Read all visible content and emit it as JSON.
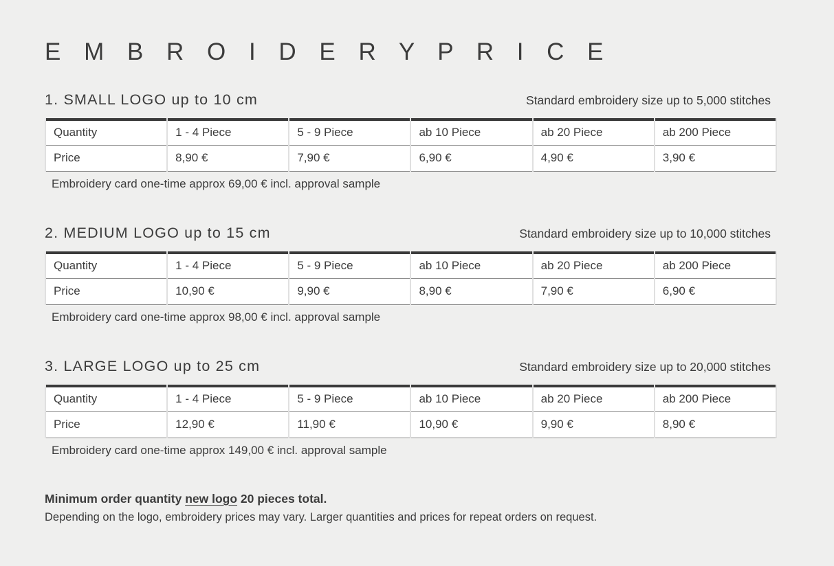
{
  "page": {
    "title": "E M B R O I D E R Y   P R I C E",
    "background_color": "#efefee",
    "text_color": "#3c3c3c",
    "table_top_border_color": "#3a3a3a",
    "table_line_color": "#8c8c8c",
    "table_cell_background": "#ffffff"
  },
  "table_headers": [
    "Quantity",
    "1 - 4 Piece",
    "5 - 9 Piece",
    "ab 10 Piece",
    "ab 20 Piece",
    "ab 200 Piece"
  ],
  "row_label": "Price",
  "sections": [
    {
      "heading": "1. SMALL LOGO up to 10 cm",
      "stitches_note": "Standard embroidery size up to 5,000 stitches",
      "prices": [
        "8,90 €",
        "7,90 €",
        "6,90 €",
        "4,90 €",
        "3,90 €"
      ],
      "card_note": "Embroidery card one-time approx 69,00 € incl. approval sample"
    },
    {
      "heading": "2. MEDIUM LOGO up to 15 cm",
      "stitches_note": "Standard embroidery size up to 10,000 stitches",
      "prices": [
        "10,90 €",
        "9,90 €",
        "8,90 €",
        "7,90 €",
        "6,90 €"
      ],
      "card_note": "Embroidery card one-time approx 98,00 € incl. approval sample"
    },
    {
      "heading": "3. LARGE LOGO up to 25 cm",
      "stitches_note": "Standard embroidery size up to 20,000 stitches",
      "prices": [
        "12,90 €",
        "11,90 €",
        "10,90 €",
        "9,90 €",
        "8,90 €"
      ],
      "card_note": "Embroidery card one-time approx 149,00 € incl. approval sample"
    }
  ],
  "footer": {
    "bold_prefix": "Minimum order quantity ",
    "underlined": "new logo",
    "bold_suffix": " 20 pieces total.",
    "note": "Depending on the logo, embroidery prices may vary. Larger quantities and prices for repeat orders on request."
  }
}
